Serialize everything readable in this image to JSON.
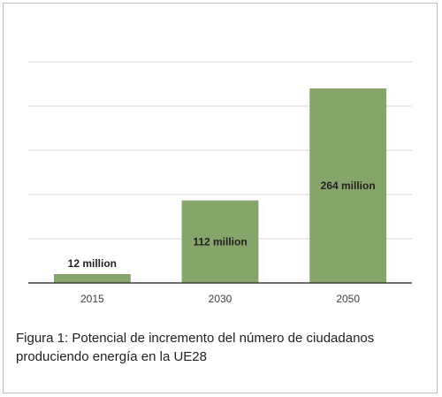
{
  "chart_data": {
    "type": "bar",
    "categories": [
      "2015",
      "2030",
      "2050"
    ],
    "values": [
      12,
      112,
      264
    ],
    "data_labels": [
      "12 million",
      "112 million",
      "264 million"
    ],
    "ylim": [
      0,
      300
    ],
    "grid": true,
    "bar_color": "#86a56b",
    "gridline_color": "#d9d9d9",
    "axis_color": "#404040",
    "label_color": "#222222"
  },
  "caption": {
    "line1": "Figura 1: Potencial de incremento del número de ciudadanos",
    "line2": "produciendo energía en la UE28"
  }
}
